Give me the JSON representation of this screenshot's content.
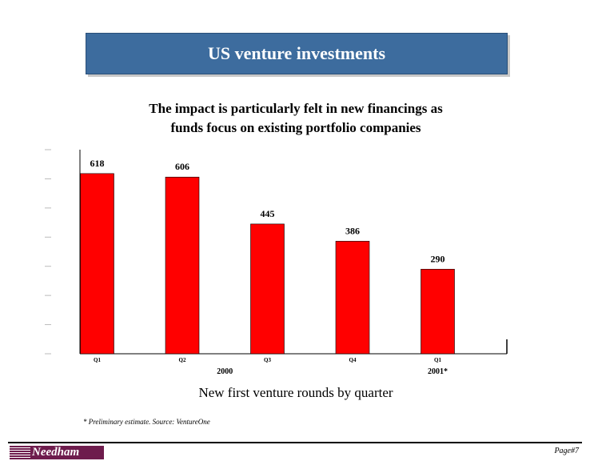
{
  "header": {
    "title": "US venture investments"
  },
  "subtitle_lines": [
    "The impact is particularly felt in new financings as",
    "funds focus on existing portfolio companies"
  ],
  "chart_data": {
    "type": "bar",
    "categories": [
      "Q1",
      "Q2",
      "Q3",
      "Q4",
      "Q1"
    ],
    "values": [
      618,
      606,
      445,
      386,
      290
    ],
    "value_labels": [
      "618",
      "606",
      "445",
      "386",
      "290"
    ],
    "group_labels": [
      {
        "label": "2000",
        "categories": [
          0,
          1,
          2,
          3
        ]
      },
      {
        "label": "2001*",
        "categories": [
          4
        ]
      }
    ],
    "ylim": [
      0,
      700
    ],
    "bar_color": "#ff0000",
    "grid": false,
    "legend": "none"
  },
  "caption": "New first venture rounds by quarter",
  "footnote": "* Preliminary estimate.  Source: VentureOne",
  "footer": {
    "logo_text": "Needham",
    "page_label": "Page#7",
    "logo_color": "#6e1c4d"
  },
  "colors": {
    "title_bg": "#3d6c9e",
    "bars": "#ff0000"
  }
}
